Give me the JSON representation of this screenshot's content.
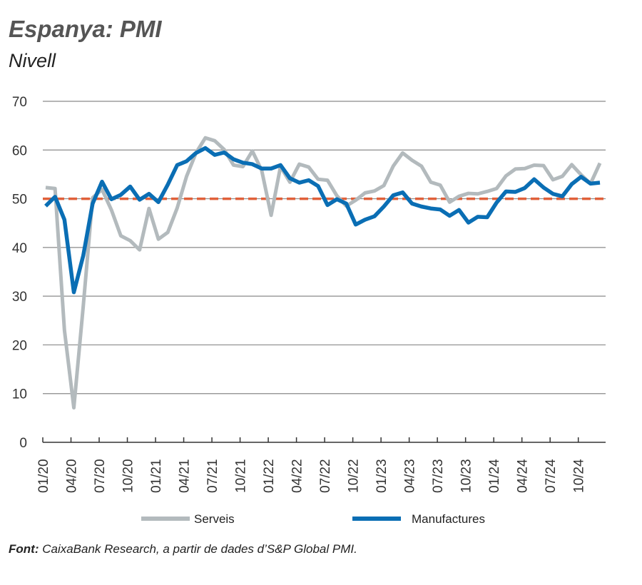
{
  "chart_data": {
    "type": "line",
    "title": "Espanya: PMI",
    "subtitle": "Nivell",
    "ylim": [
      0,
      70
    ],
    "yticks": [
      0,
      10,
      20,
      30,
      40,
      50,
      60,
      70
    ],
    "xtick_labels": [
      "01/20",
      "04/20",
      "07/20",
      "10/20",
      "01/21",
      "04/21",
      "07/21",
      "10/21",
      "01/22",
      "04/22",
      "07/22",
      "10/22",
      "01/23",
      "04/23",
      "07/23",
      "10/23",
      "01/24",
      "04/24",
      "07/24",
      "10/24"
    ],
    "reference_line": 50,
    "grid": true,
    "legend": "bottom",
    "series": [
      {
        "name": "Serveis",
        "color": "#b3babd",
        "values": [
          52.3,
          52.1,
          23.0,
          7.1,
          27.9,
          50.2,
          51.9,
          47.7,
          42.4,
          41.4,
          39.5,
          48.0,
          41.7,
          43.1,
          48.1,
          54.6,
          59.4,
          62.5,
          61.9,
          60.1,
          56.9,
          56.6,
          59.8,
          55.8,
          46.6,
          56.6,
          53.4,
          57.1,
          56.5,
          54.0,
          53.8,
          50.6,
          48.5,
          49.7,
          51.2,
          51.6,
          52.7,
          56.7,
          59.4,
          57.9,
          56.7,
          53.4,
          52.8,
          49.3,
          50.5,
          51.1,
          51.0,
          51.5,
          52.1,
          54.7,
          56.1,
          56.2,
          56.9,
          56.8,
          53.9,
          54.6,
          57.0,
          54.9,
          53.1,
          57.3
        ]
      },
      {
        "name": "Manufactures",
        "color": "#0a6eb4",
        "values": [
          48.5,
          50.4,
          45.7,
          30.8,
          38.3,
          49.0,
          53.5,
          49.9,
          50.8,
          52.5,
          49.8,
          51.0,
          49.3,
          52.9,
          56.9,
          57.7,
          59.4,
          60.4,
          59.0,
          59.5,
          58.1,
          57.4,
          57.1,
          56.2,
          56.2,
          56.9,
          54.2,
          53.3,
          53.8,
          52.6,
          48.7,
          49.9,
          49.0,
          44.7,
          45.7,
          46.4,
          48.4,
          50.7,
          51.3,
          49.0,
          48.4,
          48.0,
          47.8,
          46.5,
          47.7,
          45.1,
          46.3,
          46.2,
          49.2,
          51.5,
          51.4,
          52.2,
          54.0,
          52.3,
          51.0,
          50.5,
          53.0,
          54.5,
          53.1,
          53.3
        ]
      }
    ],
    "reference_color": "#e0603a"
  },
  "source": {
    "label": "Font:",
    "text": " CaixaBank Research, a partir de dades d’S&P Global PMI."
  }
}
